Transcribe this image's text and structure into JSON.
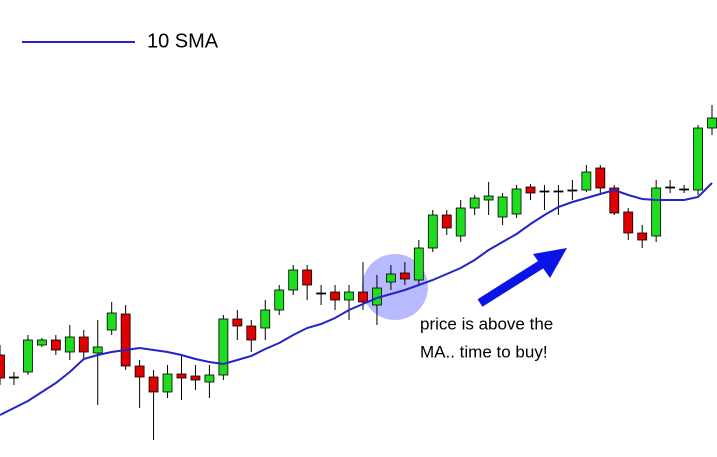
{
  "chart_data": {
    "type": "candlestick",
    "categories": [
      null,
      null,
      null,
      null,
      null,
      null,
      null,
      null,
      null,
      null,
      null,
      null,
      null,
      null,
      null,
      null,
      null,
      null,
      null,
      null,
      null,
      null,
      null,
      null,
      null,
      null,
      null,
      null,
      null,
      null,
      null,
      null,
      null,
      null,
      null,
      null,
      null,
      null,
      null,
      null,
      null,
      null,
      null,
      null,
      null,
      null,
      null,
      null,
      null,
      null,
      null,
      null
    ],
    "open": [
      102,
      80,
      85,
      112,
      117,
      105,
      120,
      104,
      127,
      143,
      91,
      80,
      65,
      83,
      81,
      75,
      82,
      138,
      131,
      129,
      147,
      167,
      187,
      164,
      165,
      157,
      165,
      152,
      175,
      184,
      177,
      209,
      242,
      221,
      249,
      257,
      240,
      243,
      270,
      266,
      266,
      267,
      267,
      289,
      269,
      245,
      224,
      221,
      270,
      268,
      267,
      329
    ],
    "high": [
      112,
      85,
      122,
      119,
      122,
      132,
      127,
      137,
      155,
      152,
      97,
      87,
      92,
      102,
      92,
      92,
      142,
      147,
      137,
      157,
      172,
      192,
      192,
      172,
      172,
      172,
      195,
      182,
      192,
      195,
      217,
      247,
      247,
      257,
      262,
      275,
      264,
      272,
      273,
      272,
      272,
      277,
      292,
      292,
      272,
      249,
      232,
      277,
      277,
      272,
      332,
      352
    ],
    "low": [
      72,
      72,
      82,
      110,
      102,
      97,
      97,
      52,
      122,
      87,
      49,
      17,
      59,
      57,
      67,
      59,
      77,
      117,
      105,
      117,
      142,
      162,
      157,
      152,
      147,
      137,
      147,
      132,
      167,
      172,
      172,
      205,
      222,
      215,
      242,
      242,
      232,
      239,
      257,
      247,
      242,
      257,
      265,
      262,
      242,
      217,
      209,
      215,
      264,
      264,
      262,
      322
    ],
    "close": [
      79,
      80,
      117,
      117,
      107,
      120,
      105,
      110,
      144,
      91,
      80,
      65,
      83,
      79,
      77,
      82,
      138,
      131,
      117,
      147,
      167,
      187,
      172,
      164,
      157,
      165,
      155,
      169,
      183,
      178,
      209,
      242,
      229,
      249,
      259,
      261,
      260,
      268,
      264,
      266,
      266,
      267,
      285,
      269,
      244,
      224,
      217,
      269,
      270,
      268,
      329,
      339
    ],
    "up_color": "#1edc1e",
    "down_color": "#e00000",
    "series": [
      {
        "name": "10 SMA",
        "color": "#2424c8",
        "values": [
          42,
          49,
          56,
          65,
          74,
          85,
          98,
          102,
          105,
          107,
          109,
          107,
          105,
          102,
          98,
          95,
          93,
          97,
          101,
          108,
          114,
          122,
          129,
          133,
          139,
          147,
          153,
          159,
          163,
          167,
          172,
          177,
          183,
          189,
          197,
          207,
          215,
          223,
          233,
          242,
          250,
          255,
          259,
          263,
          267,
          262,
          258,
          257,
          257,
          257,
          260,
          274
        ]
      }
    ],
    "annotation": [
      "price is above the",
      "MA.. time to buy!"
    ],
    "ylim": [
      0,
      457
    ]
  }
}
